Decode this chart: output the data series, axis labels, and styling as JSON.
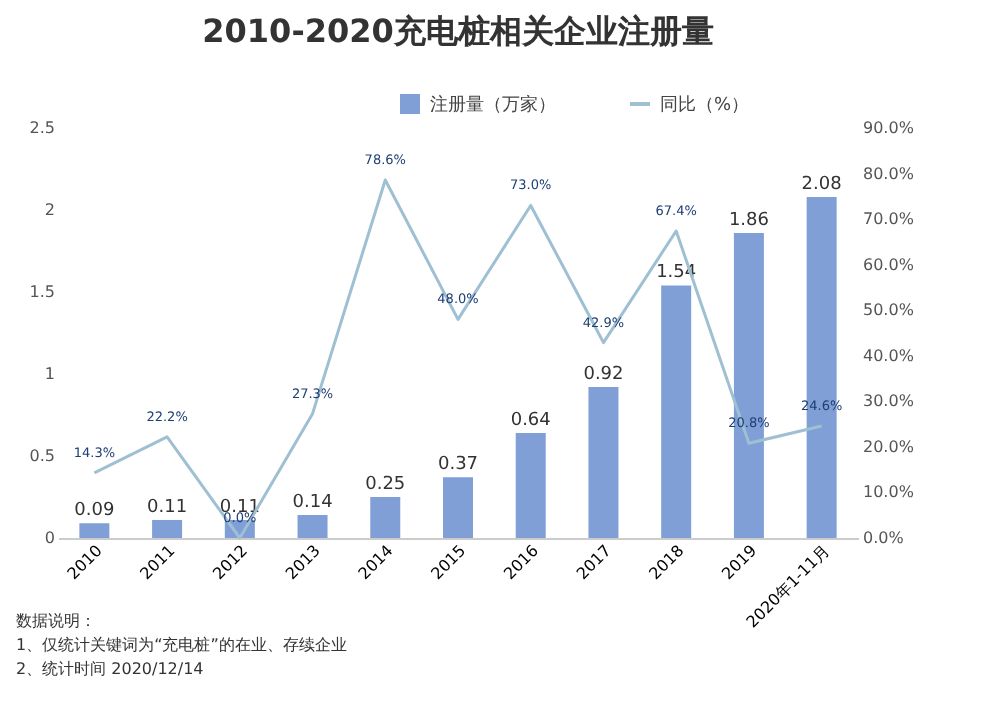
{
  "chart_data": {
    "type": "bar",
    "title": "2010-2020充电桩相关企业注册量",
    "categories": [
      "2010",
      "2011",
      "2012",
      "2013",
      "2014",
      "2015",
      "2016",
      "2017",
      "2018",
      "2019",
      "2020年1-11月"
    ],
    "series": [
      {
        "name": "注册量（万家）",
        "color": "#7f9fd6",
        "values": [
          0.09,
          0.11,
          0.11,
          0.14,
          0.25,
          0.37,
          0.64,
          0.92,
          1.54,
          1.86,
          2.08
        ],
        "value_labels": [
          "0.09",
          "0.11",
          "0.11",
          "0.14",
          "0.25",
          "0.37",
          "0.64",
          "0.92",
          "1.54",
          "1.86",
          "2.08"
        ]
      },
      {
        "name": "同比（%）",
        "type": "line",
        "axis": "y2",
        "color": "#9fbfd2",
        "values": [
          14.3,
          22.2,
          0.0,
          27.3,
          78.6,
          48.0,
          73.0,
          42.9,
          67.4,
          20.8,
          24.6
        ],
        "value_labels": [
          "14.3%",
          "22.2%",
          "0.0%",
          "27.3%",
          "78.6%",
          "48.0%",
          "73.0%",
          "42.9%",
          "67.4%",
          "20.8%",
          "24.6%"
        ]
      }
    ],
    "ylim": [
      0,
      2.5
    ],
    "yticks": [
      0,
      0.5,
      1,
      1.5,
      2,
      2.5
    ],
    "y2lim": [
      0,
      90
    ],
    "y2ticks": [
      {
        "value": 0,
        "label": "0.0%"
      },
      {
        "value": 10,
        "label": "10.0%"
      },
      {
        "value": 20,
        "label": "20.0%"
      },
      {
        "value": 30,
        "label": "30.0%"
      },
      {
        "value": 40,
        "label": "40.0%"
      },
      {
        "value": 50,
        "label": "50.0%"
      },
      {
        "value": 60,
        "label": "60.0%"
      },
      {
        "value": 70,
        "label": "70.0%"
      },
      {
        "value": 80,
        "label": "80.0%"
      },
      {
        "value": 90,
        "label": "90.0%"
      }
    ],
    "legend": "top right",
    "grid": false,
    "marker": "none",
    "line_style": "solid",
    "annotations": [
      "数据说明：",
      "1、仅统计关键词为“充电桩”的在业、存续企业",
      "2、统计时间 2020/12/14"
    ]
  }
}
